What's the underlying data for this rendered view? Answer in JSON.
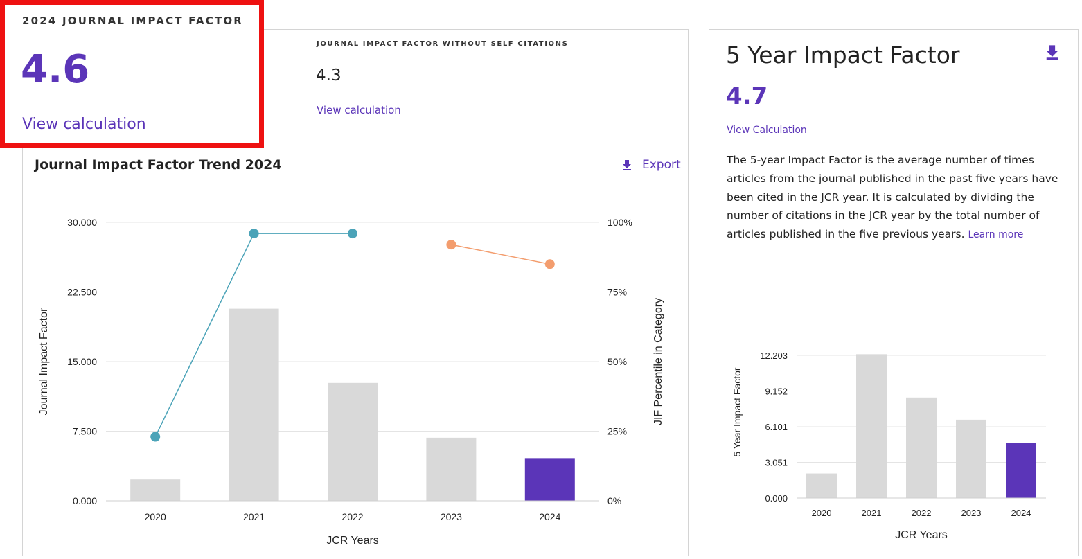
{
  "jif": {
    "label": "2024 JOURNAL IMPACT FACTOR",
    "value": "4.6",
    "calc_link": "View calculation"
  },
  "jif_no_self": {
    "label": "JOURNAL IMPACT FACTOR WITHOUT SELF CITATIONS",
    "value": "4.3",
    "calc_link": "View calculation"
  },
  "trend": {
    "title": "Journal Impact Factor Trend 2024",
    "export_label": "Export"
  },
  "five_year": {
    "title": "5 Year Impact Factor",
    "value": "4.7",
    "calc_link": "View Calculation",
    "description": "The 5-year Impact Factor is the average number of times articles from the journal published in the past five years have been cited in the JCR year. It is calculated by dividing the number of citations in the JCR year by the total number of articles published in the five previous years.",
    "learn_more": "Learn more"
  },
  "colors": {
    "accent": "#5b35b8",
    "bar_gray": "#d9d9d9",
    "line_teal": "#4ba3b8",
    "line_orange": "#f39d6e",
    "highlight": "#ee1111"
  },
  "chart_data": [
    {
      "type": "bar",
      "title": "Journal Impact Factor Trend 2024",
      "categories": [
        "2020",
        "2021",
        "2022",
        "2023",
        "2024"
      ],
      "series": [
        {
          "name": "Journal Impact Factor",
          "axis": "left",
          "values": [
            2.3,
            20.7,
            12.7,
            6.8,
            4.6
          ],
          "highlight_index": 4
        },
        {
          "name": "JIF Percentile in Category (series 1)",
          "axis": "right",
          "type": "line",
          "values": [
            23,
            96,
            96,
            null,
            null
          ]
        },
        {
          "name": "JIF Percentile in Category (series 2)",
          "axis": "right",
          "type": "line",
          "values": [
            null,
            null,
            null,
            92,
            85
          ]
        }
      ],
      "xlabel": "JCR Years",
      "ylabel": "Journal Impact Factor",
      "ylabel_right": "JIF Percentile in Category",
      "ylim": [
        0,
        30
      ],
      "ylim_right": [
        0,
        100
      ],
      "yticks": [
        "0.000",
        "7.500",
        "15.000",
        "22.500",
        "30.000"
      ],
      "yticks_right": [
        "0%",
        "25%",
        "50%",
        "75%",
        "100%"
      ]
    },
    {
      "type": "bar",
      "categories": [
        "2020",
        "2021",
        "2022",
        "2023",
        "2024"
      ],
      "values": [
        2.1,
        12.3,
        8.6,
        6.7,
        4.7
      ],
      "highlight_index": 4,
      "xlabel": "JCR Years",
      "ylabel": "5 Year Impact Factor",
      "ylim": [
        0,
        12.203
      ],
      "yticks": [
        "0.000",
        "3.051",
        "6.101",
        "9.152",
        "12.203"
      ]
    }
  ]
}
